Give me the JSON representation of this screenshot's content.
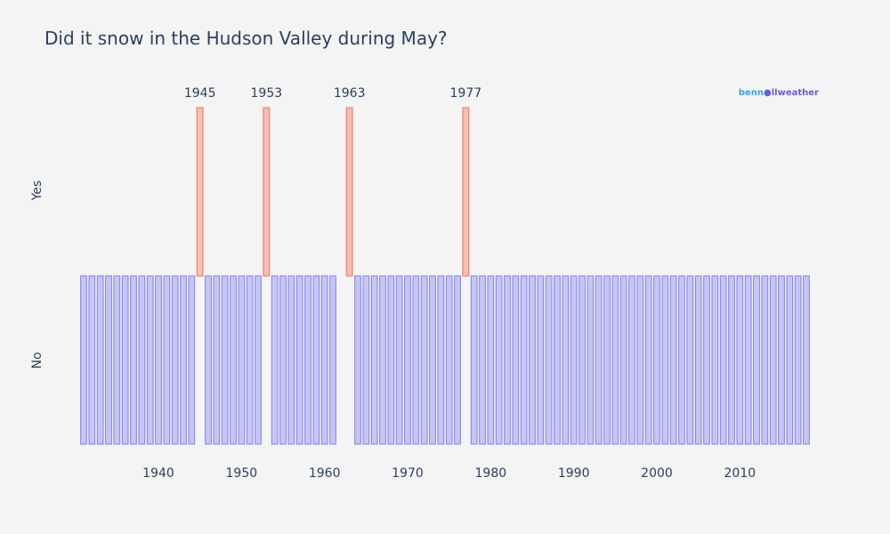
{
  "chart_data": {
    "type": "bar",
    "title": "Did it snow in the Hudson Valley during May?",
    "xlabel": "",
    "ylabel": "",
    "x_range": [
      1930,
      2019
    ],
    "x_ticks": [
      1940,
      1950,
      1960,
      1970,
      1980,
      1990,
      2000,
      2010
    ],
    "y_categories": [
      "No",
      "Yes"
    ],
    "grid": false,
    "legend": "none",
    "colors": {
      "no": "#8080f0",
      "no_fill": "#c6c6f5",
      "yes": "#f08070",
      "yes_fill": "#f6bfb4",
      "background": "#f4f4f4"
    },
    "snow_years": [
      1945,
      1953,
      1963,
      1977
    ],
    "no_snow_years": [
      1931,
      1932,
      1933,
      1934,
      1935,
      1936,
      1937,
      1938,
      1939,
      1940,
      1941,
      1942,
      1943,
      1944,
      1946,
      1947,
      1948,
      1949,
      1950,
      1951,
      1952,
      1954,
      1955,
      1956,
      1957,
      1958,
      1959,
      1960,
      1961,
      1964,
      1965,
      1966,
      1967,
      1968,
      1969,
      1970,
      1971,
      1972,
      1973,
      1974,
      1975,
      1976,
      1978,
      1979,
      1980,
      1981,
      1982,
      1983,
      1984,
      1985,
      1986,
      1987,
      1988,
      1989,
      1990,
      1991,
      1992,
      1993,
      1994,
      1995,
      1996,
      1997,
      1998,
      1999,
      2000,
      2001,
      2002,
      2003,
      2004,
      2005,
      2006,
      2007,
      2008,
      2009,
      2010,
      2011,
      2012,
      2013,
      2014,
      2015,
      2016,
      2017,
      2018
    ],
    "annotations": [
      {
        "year": 1945,
        "text": "1945"
      },
      {
        "year": 1953,
        "text": "1953"
      },
      {
        "year": 1963,
        "text": "1963"
      },
      {
        "year": 1977,
        "text": "1977"
      }
    ]
  },
  "watermark": {
    "text_a": "benn",
    "text_b": "llweather"
  }
}
